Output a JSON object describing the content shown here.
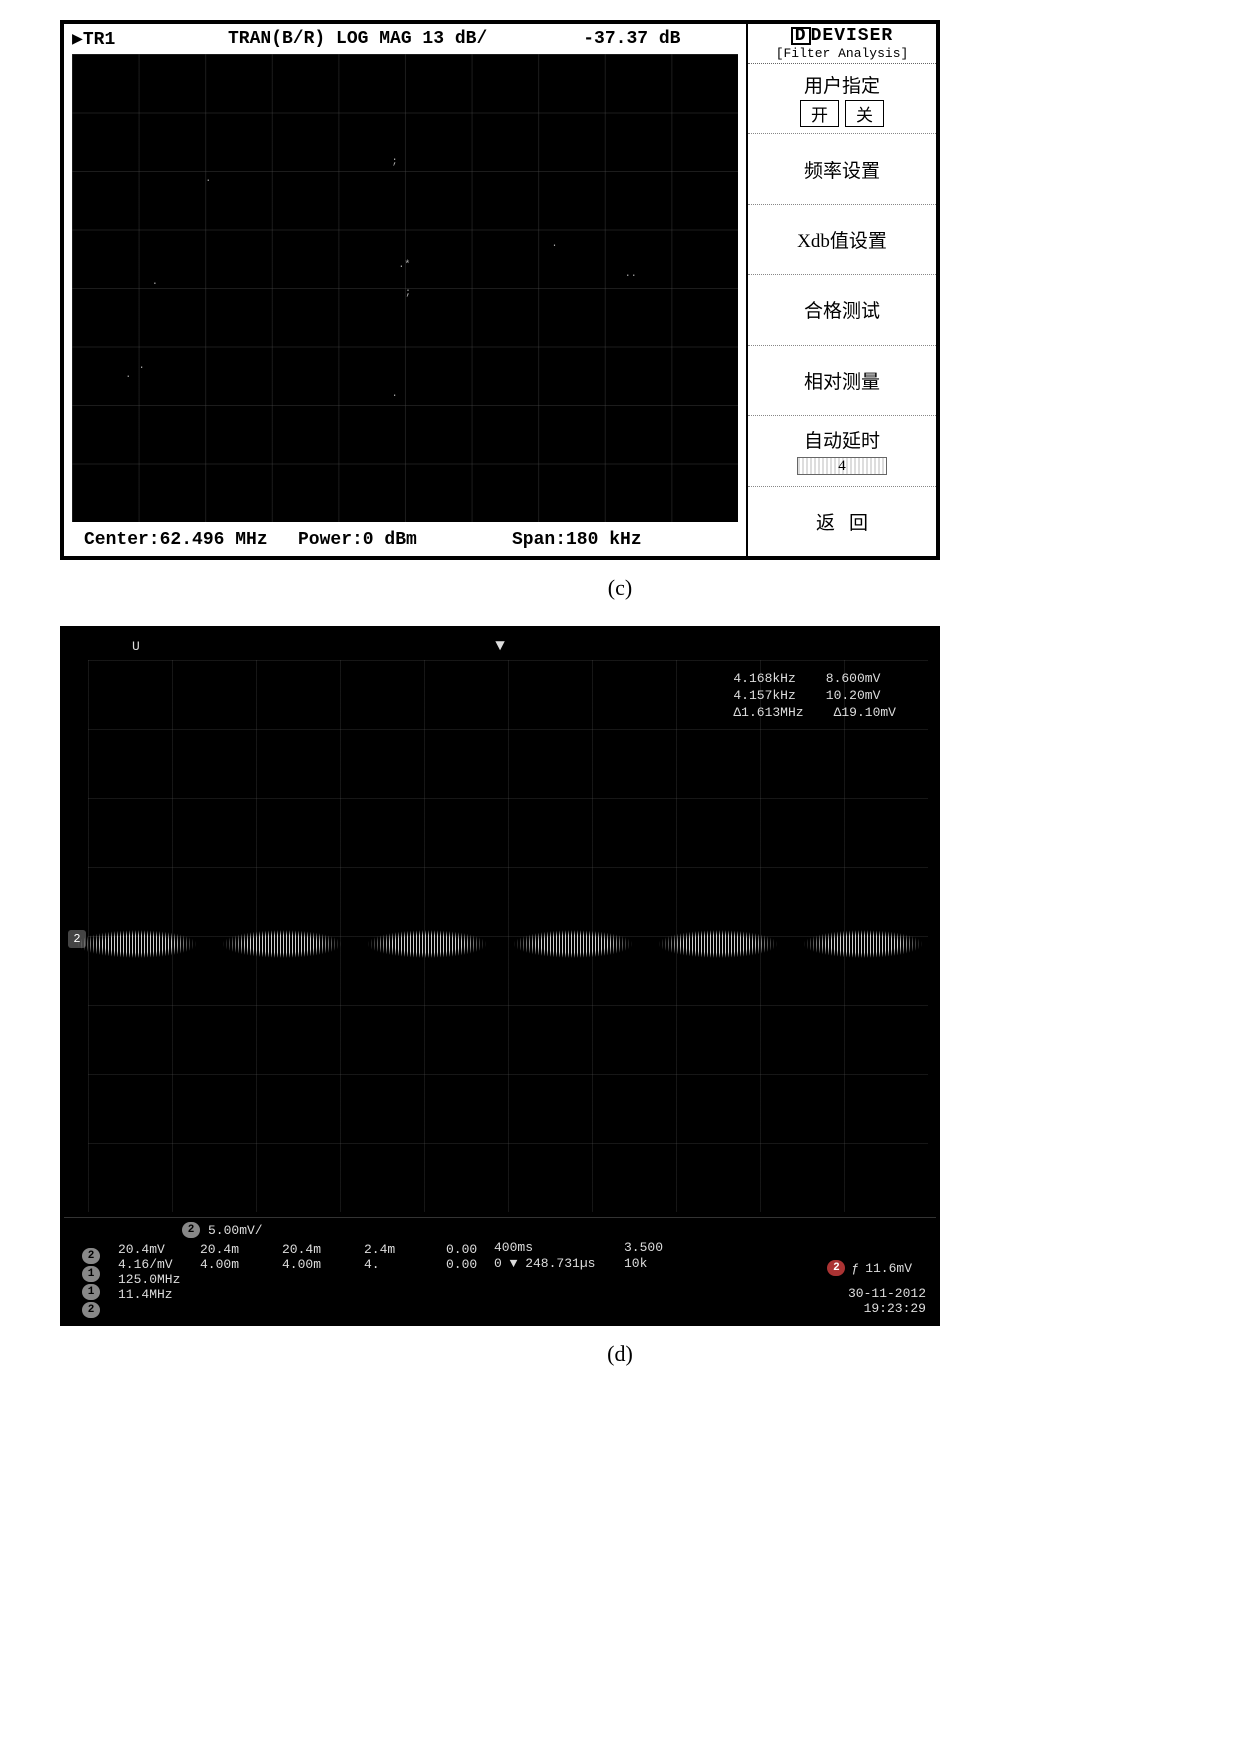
{
  "figure_c": {
    "caption": "(c)",
    "header": {
      "trace": "▶TR1",
      "mode": "TRAN(B/R)  LOG MAG  13 dB/",
      "db": "-37.37 dB"
    },
    "plot": {
      "background_color": "#000000",
      "grid_color": "#505050",
      "grid_cols": 10,
      "grid_rows": 8,
      "noise_points": [
        {
          "x": 12,
          "y": 48
        },
        {
          "x": 10,
          "y": 66
        },
        {
          "x": 20,
          "y": 26
        },
        {
          "x": 48,
          "y": 22,
          "txt": ";"
        },
        {
          "x": 49,
          "y": 44,
          "txt": ".*"
        },
        {
          "x": 50,
          "y": 50,
          "txt": ";"
        },
        {
          "x": 72,
          "y": 40
        },
        {
          "x": 83,
          "y": 46,
          "txt": ".."
        },
        {
          "x": 8,
          "y": 68
        },
        {
          "x": 48,
          "y": 72
        }
      ]
    },
    "footer": {
      "center": "Center:62.496 MHz",
      "power": "Power:0 dBm",
      "span": "Span:180 kHz"
    },
    "brand": "DEVISER",
    "mode_label": "[Filter Analysis]",
    "menu": {
      "user": {
        "label": "用户指定",
        "on": "开",
        "off": "关"
      },
      "freq": "频率设置",
      "xdb": "Xdb值设置",
      "pass": "合格测试",
      "rel": "相对测量",
      "autodelay": {
        "label": "自动延时",
        "value": "4"
      },
      "back": "返回"
    }
  },
  "figure_d": {
    "caption": "(d)",
    "background_color": "#000000",
    "text_color": "#dddddd",
    "top": {
      "u": "U",
      "marker": "▼"
    },
    "cursor": {
      "rows": [
        {
          "a": "4.168kHz",
          "b": "8.600mV"
        },
        {
          "a": "4.157kHz",
          "b": "10.20mV"
        },
        {
          "a": "Δ1.613MHz",
          "b": "Δ19.10mV"
        }
      ]
    },
    "ch2_badge": "2",
    "wave": {
      "bursts": 6
    },
    "bottom": {
      "ch2_scale": "5.00mV/",
      "cols": [
        [
          "20.4mV",
          "4.16/mV",
          "125.0MHz",
          "11.4MHz"
        ],
        [
          "20.4m",
          "4.00m",
          "",
          ""
        ],
        [
          "20.4m",
          "4.00m",
          "",
          ""
        ],
        [
          "2.4m",
          "4.",
          "",
          ""
        ],
        [
          "0.00",
          "0.00",
          "",
          ""
        ]
      ],
      "timebase": [
        "400ms",
        "0 ▼ 248.731µs"
      ],
      "trg": [
        "3.500",
        "10k"
      ],
      "trigger": {
        "ch": "2",
        "edge": "ƒ",
        "level": "11.6mV"
      },
      "datetime": [
        "30-11-2012",
        "19:23:29"
      ]
    }
  }
}
